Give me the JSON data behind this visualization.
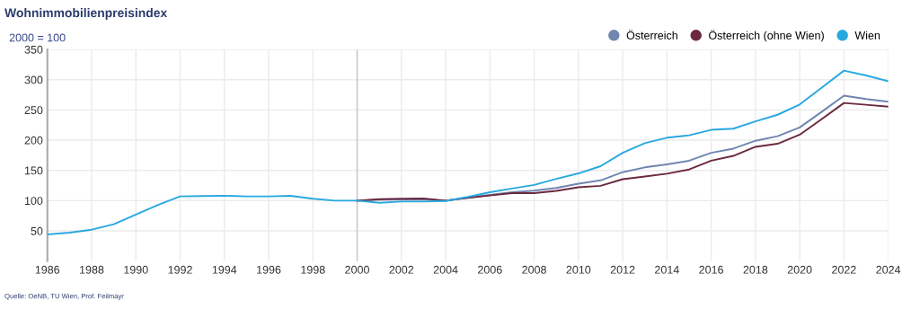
{
  "chart_data": {
    "type": "line",
    "title": "Wohnimmobilienpreisindex",
    "subtitle": "2000 = 100",
    "annotations": [
      "Quelle: OeNB, TU Wien, Prof. Feilmayr"
    ],
    "xlim": [
      1986,
      2024
    ],
    "xticks": [
      1986,
      1988,
      1990,
      1992,
      1994,
      1996,
      1998,
      2000,
      2002,
      2004,
      2006,
      2008,
      2010,
      2012,
      2014,
      2016,
      2018,
      2020,
      2022,
      2024
    ],
    "ylim": [
      0,
      350
    ],
    "yticks": [
      50,
      100,
      150,
      200,
      250,
      300,
      350
    ],
    "grid": true,
    "legend": "top right",
    "ref_lines": [
      {
        "axis": "x",
        "value": 2000,
        "label": null,
        "color": "#cccccc"
      }
    ],
    "series": [
      {
        "name": "Österreich",
        "color": "#7086b0",
        "x": [
          2000,
          2001,
          2002,
          2003,
          2004,
          2005,
          2006,
          2007,
          2008,
          2009,
          2010,
          2011,
          2012,
          2013,
          2014,
          2015,
          2016,
          2017,
          2018,
          2019,
          2020,
          2021,
          2022,
          2023,
          2024
        ],
        "values": [
          100,
          101.5,
          102,
          102.5,
          100,
          105,
          109.5,
          114,
          116.5,
          121,
          128,
          133.5,
          147,
          155,
          160,
          166,
          179,
          186,
          199,
          206.5,
          221,
          247,
          273.5,
          268,
          263.5
        ]
      },
      {
        "name": "Österreich (ohne Wien)",
        "color": "#6b2a3e",
        "x": [
          2000,
          2001,
          2002,
          2003,
          2004,
          2005,
          2006,
          2007,
          2008,
          2009,
          2010,
          2011,
          2012,
          2013,
          2014,
          2015,
          2016,
          2017,
          2018,
          2019,
          2020,
          2021,
          2022,
          2023,
          2024
        ],
        "values": [
          100,
          102.5,
          103,
          103.5,
          100,
          104.5,
          108.5,
          112.5,
          112.5,
          116,
          122,
          124.5,
          135.5,
          140,
          144.5,
          151.5,
          166,
          174,
          189,
          194,
          209,
          235,
          261.5,
          258.5,
          255.5
        ]
      },
      {
        "name": "Wien",
        "color": "#29a8e0",
        "x": [
          1986,
          1987,
          1988,
          1989,
          1990,
          1991,
          1992,
          1993,
          1994,
          1995,
          1996,
          1997,
          1998,
          1999,
          2000,
          2001,
          2002,
          2003,
          2004,
          2005,
          2006,
          2007,
          2008,
          2009,
          2010,
          2011,
          2012,
          2013,
          2014,
          2015,
          2016,
          2017,
          2018,
          2019,
          2020,
          2021,
          2022,
          2023,
          2024
        ],
        "values": [
          44,
          47,
          52,
          61,
          77,
          93,
          107,
          107.5,
          108,
          107,
          107,
          108,
          103,
          100,
          100,
          96.5,
          98.5,
          98.5,
          99.5,
          106,
          114,
          120,
          126,
          136,
          145,
          157,
          179,
          195,
          204,
          208,
          217,
          219,
          231,
          242,
          259,
          287,
          315,
          307,
          297.5
        ]
      }
    ]
  }
}
